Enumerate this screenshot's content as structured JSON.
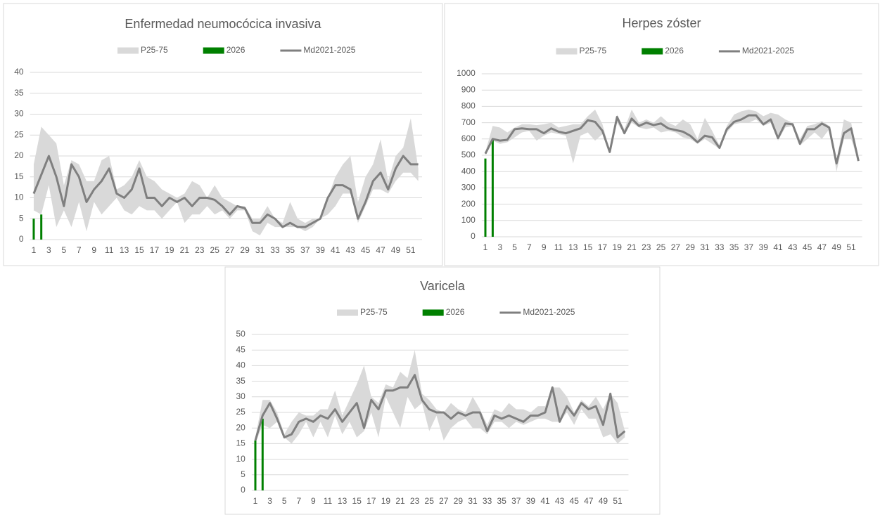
{
  "chart_data": [
    {
      "type": "line",
      "title": "Enfermedad neumocócica invasiva",
      "categories": [
        1,
        null,
        3,
        null,
        5,
        null,
        7,
        null,
        9,
        null,
        11,
        null,
        13,
        null,
        15,
        null,
        17,
        null,
        19,
        null,
        21,
        null,
        23,
        null,
        25,
        null,
        27,
        null,
        29,
        null,
        31,
        null,
        33,
        null,
        35,
        null,
        37,
        null,
        39,
        null,
        41,
        null,
        43,
        null,
        45,
        null,
        47,
        null,
        49,
        null,
        51,
        null
      ],
      "ylim": [
        0,
        40
      ],
      "yticks": [
        0,
        5,
        10,
        15,
        20,
        25,
        30,
        35,
        40
      ],
      "grid": true,
      "legend": "top",
      "series": [
        {
          "name": "P25-75",
          "type": "area",
          "color": "#d9d9d9",
          "low": [
            7,
            6,
            13,
            3,
            7,
            3,
            9,
            2,
            9,
            6,
            8,
            10,
            7,
            6,
            8,
            7,
            7,
            5,
            7,
            9,
            4,
            6,
            6,
            8,
            6,
            7,
            5,
            7,
            7,
            2,
            1,
            4,
            3,
            3,
            3,
            3,
            2,
            3,
            5,
            6,
            8,
            11,
            11,
            4,
            8,
            12,
            12,
            11,
            14,
            16,
            16,
            14
          ],
          "high": [
            18,
            27,
            25,
            23,
            13,
            19,
            18,
            14,
            14,
            19,
            20,
            12,
            13,
            15,
            19,
            15,
            14,
            12,
            11,
            10,
            11,
            14,
            13,
            10,
            13,
            10,
            9,
            8,
            8,
            5,
            5,
            8,
            5,
            4,
            9,
            5,
            4,
            5,
            5,
            10,
            15,
            18,
            20,
            9,
            15,
            18,
            24,
            14,
            20,
            22,
            29,
            17
          ]
        },
        {
          "name": "2026",
          "type": "bar",
          "color": "#008000",
          "values": [
            5,
            6,
            null,
            null,
            null,
            null,
            null,
            null,
            null,
            null,
            null,
            null,
            null,
            null,
            null,
            null,
            null,
            null,
            null,
            null,
            null,
            null,
            null,
            null,
            null,
            null,
            null,
            null,
            null,
            null,
            null,
            null,
            null,
            null,
            null,
            null,
            null,
            null,
            null,
            null,
            null,
            null,
            null,
            null,
            null,
            null,
            null,
            null,
            null,
            null,
            null,
            null
          ]
        },
        {
          "name": "Md2021-2025",
          "type": "line",
          "color": "#7f7f7f",
          "values": [
            11,
            15.5,
            20,
            15,
            8,
            18,
            15,
            9,
            12,
            14,
            17,
            11,
            10,
            12,
            17,
            10,
            10,
            8,
            10,
            9,
            10,
            8,
            10,
            10,
            9.5,
            8,
            6,
            8,
            7.5,
            4,
            4,
            6,
            5,
            3,
            4,
            3,
            3,
            4,
            5,
            10,
            13,
            13,
            12,
            5,
            9,
            14,
            16,
            12,
            17,
            20,
            18,
            18
          ]
        }
      ]
    },
    {
      "type": "line",
      "title": "Herpes zóster",
      "categories": [
        1,
        null,
        3,
        null,
        5,
        null,
        7,
        null,
        9,
        null,
        11,
        null,
        13,
        null,
        15,
        null,
        17,
        null,
        19,
        null,
        21,
        null,
        23,
        null,
        25,
        null,
        27,
        null,
        29,
        null,
        31,
        null,
        33,
        null,
        35,
        null,
        37,
        null,
        39,
        null,
        41,
        null,
        43,
        null,
        45,
        null,
        47,
        null,
        49,
        null,
        51,
        null
      ],
      "ylim": [
        0,
        1000
      ],
      "yticks": [
        0,
        100,
        200,
        300,
        400,
        500,
        600,
        700,
        800,
        900,
        1000
      ],
      "grid": true,
      "legend": "top",
      "series": [
        {
          "name": "P25-75",
          "type": "area",
          "color": "#d9d9d9",
          "low": [
            500,
            590,
            570,
            580,
            610,
            640,
            650,
            590,
            620,
            640,
            630,
            620,
            450,
            620,
            640,
            590,
            630,
            520,
            700,
            630,
            700,
            670,
            660,
            670,
            640,
            650,
            640,
            610,
            600,
            570,
            600,
            570,
            540,
            640,
            690,
            700,
            700,
            720,
            680,
            700,
            590,
            670,
            680,
            560,
            600,
            640,
            600,
            660,
            400,
            600,
            600,
            460
          ],
          "high": [
            520,
            680,
            670,
            640,
            670,
            690,
            690,
            685,
            690,
            700,
            670,
            680,
            690,
            690,
            740,
            780,
            690,
            530,
            750,
            660,
            780,
            700,
            720,
            700,
            740,
            700,
            680,
            720,
            690,
            600,
            730,
            650,
            560,
            680,
            750,
            770,
            780,
            770,
            740,
            760,
            750,
            720,
            700,
            600,
            680,
            690,
            710,
            680,
            460,
            720,
            700,
            470
          ]
        },
        {
          "name": "2026",
          "type": "bar",
          "color": "#008000",
          "values": [
            480,
            600,
            null,
            null,
            null,
            null,
            null,
            null,
            null,
            null,
            null,
            null,
            null,
            null,
            null,
            null,
            null,
            null,
            null,
            null,
            null,
            null,
            null,
            null,
            null,
            null,
            null,
            null,
            null,
            null,
            null,
            null,
            null,
            null,
            null,
            null,
            null,
            null,
            null,
            null,
            null,
            null,
            null,
            null,
            null,
            null,
            null,
            null,
            null,
            null,
            null,
            null
          ]
        },
        {
          "name": "Md2021-2025",
          "type": "line",
          "color": "#7f7f7f",
          "values": [
            510,
            600,
            590,
            595,
            660,
            665,
            660,
            660,
            635,
            665,
            645,
            635,
            650,
            665,
            715,
            705,
            650,
            520,
            735,
            635,
            725,
            680,
            700,
            685,
            695,
            665,
            655,
            645,
            620,
            580,
            620,
            610,
            545,
            660,
            705,
            720,
            745,
            745,
            690,
            720,
            605,
            695,
            690,
            570,
            660,
            660,
            695,
            670,
            450,
            635,
            665,
            465
          ]
        }
      ]
    },
    {
      "type": "line",
      "title": "Varicela",
      "categories": [
        1,
        null,
        3,
        null,
        5,
        null,
        7,
        null,
        9,
        null,
        11,
        null,
        13,
        null,
        15,
        null,
        17,
        null,
        19,
        null,
        21,
        null,
        23,
        null,
        25,
        null,
        27,
        null,
        29,
        null,
        31,
        null,
        33,
        null,
        35,
        null,
        37,
        null,
        39,
        null,
        41,
        null,
        43,
        null,
        45,
        null,
        47,
        null,
        49,
        null,
        51,
        null
      ],
      "ylim": [
        0,
        50
      ],
      "yticks": [
        0,
        5,
        10,
        15,
        20,
        25,
        30,
        35,
        40,
        45,
        50
      ],
      "grid": true,
      "legend": "top",
      "series": [
        {
          "name": "P25-75",
          "type": "area",
          "color": "#d9d9d9",
          "low": [
            15,
            21,
            20,
            22,
            17,
            15,
            18,
            22,
            17,
            22,
            17,
            24,
            18,
            22,
            17,
            19,
            25,
            17,
            30,
            25,
            20,
            30,
            26,
            28,
            19,
            24,
            16,
            20,
            22,
            23,
            20,
            20,
            18,
            22,
            22,
            20,
            22,
            21,
            22,
            23,
            23,
            22,
            22,
            25,
            21,
            26,
            23,
            23,
            17,
            18,
            15,
            17
          ],
          "high": [
            17,
            29,
            29,
            25,
            18,
            22,
            25,
            24,
            24,
            26,
            26,
            32,
            24,
            29,
            34,
            40,
            30,
            28,
            34,
            33,
            38,
            36,
            45,
            31,
            29,
            26,
            25,
            28,
            26,
            25,
            30,
            26,
            21,
            26,
            25,
            28,
            26,
            26,
            25,
            27,
            27,
            33,
            33,
            30,
            25,
            29,
            27,
            30,
            26,
            31,
            28,
            19
          ]
        },
        {
          "name": "2026",
          "type": "bar",
          "color": "#008000",
          "values": [
            16,
            23,
            null,
            null,
            null,
            null,
            null,
            null,
            null,
            null,
            null,
            null,
            null,
            null,
            null,
            null,
            null,
            null,
            null,
            null,
            null,
            null,
            null,
            null,
            null,
            null,
            null,
            null,
            null,
            null,
            null,
            null,
            null,
            null,
            null,
            null,
            null,
            null,
            null,
            null,
            null,
            null,
            null,
            null,
            null,
            null,
            null,
            null,
            null,
            null,
            null,
            null
          ]
        },
        {
          "name": "Md2021-2025",
          "type": "line",
          "color": "#7f7f7f",
          "values": [
            16,
            24,
            28,
            23,
            17,
            18,
            22,
            23,
            22,
            24,
            23,
            26,
            22,
            25,
            28,
            20,
            29,
            26,
            32,
            32,
            33,
            33,
            37,
            29,
            26,
            25,
            25,
            23,
            25,
            24,
            25,
            25,
            19,
            24,
            23,
            24,
            23,
            22,
            24,
            24,
            25,
            33,
            22,
            27,
            24,
            28,
            26,
            27,
            21,
            31,
            17,
            19
          ]
        }
      ]
    }
  ]
}
